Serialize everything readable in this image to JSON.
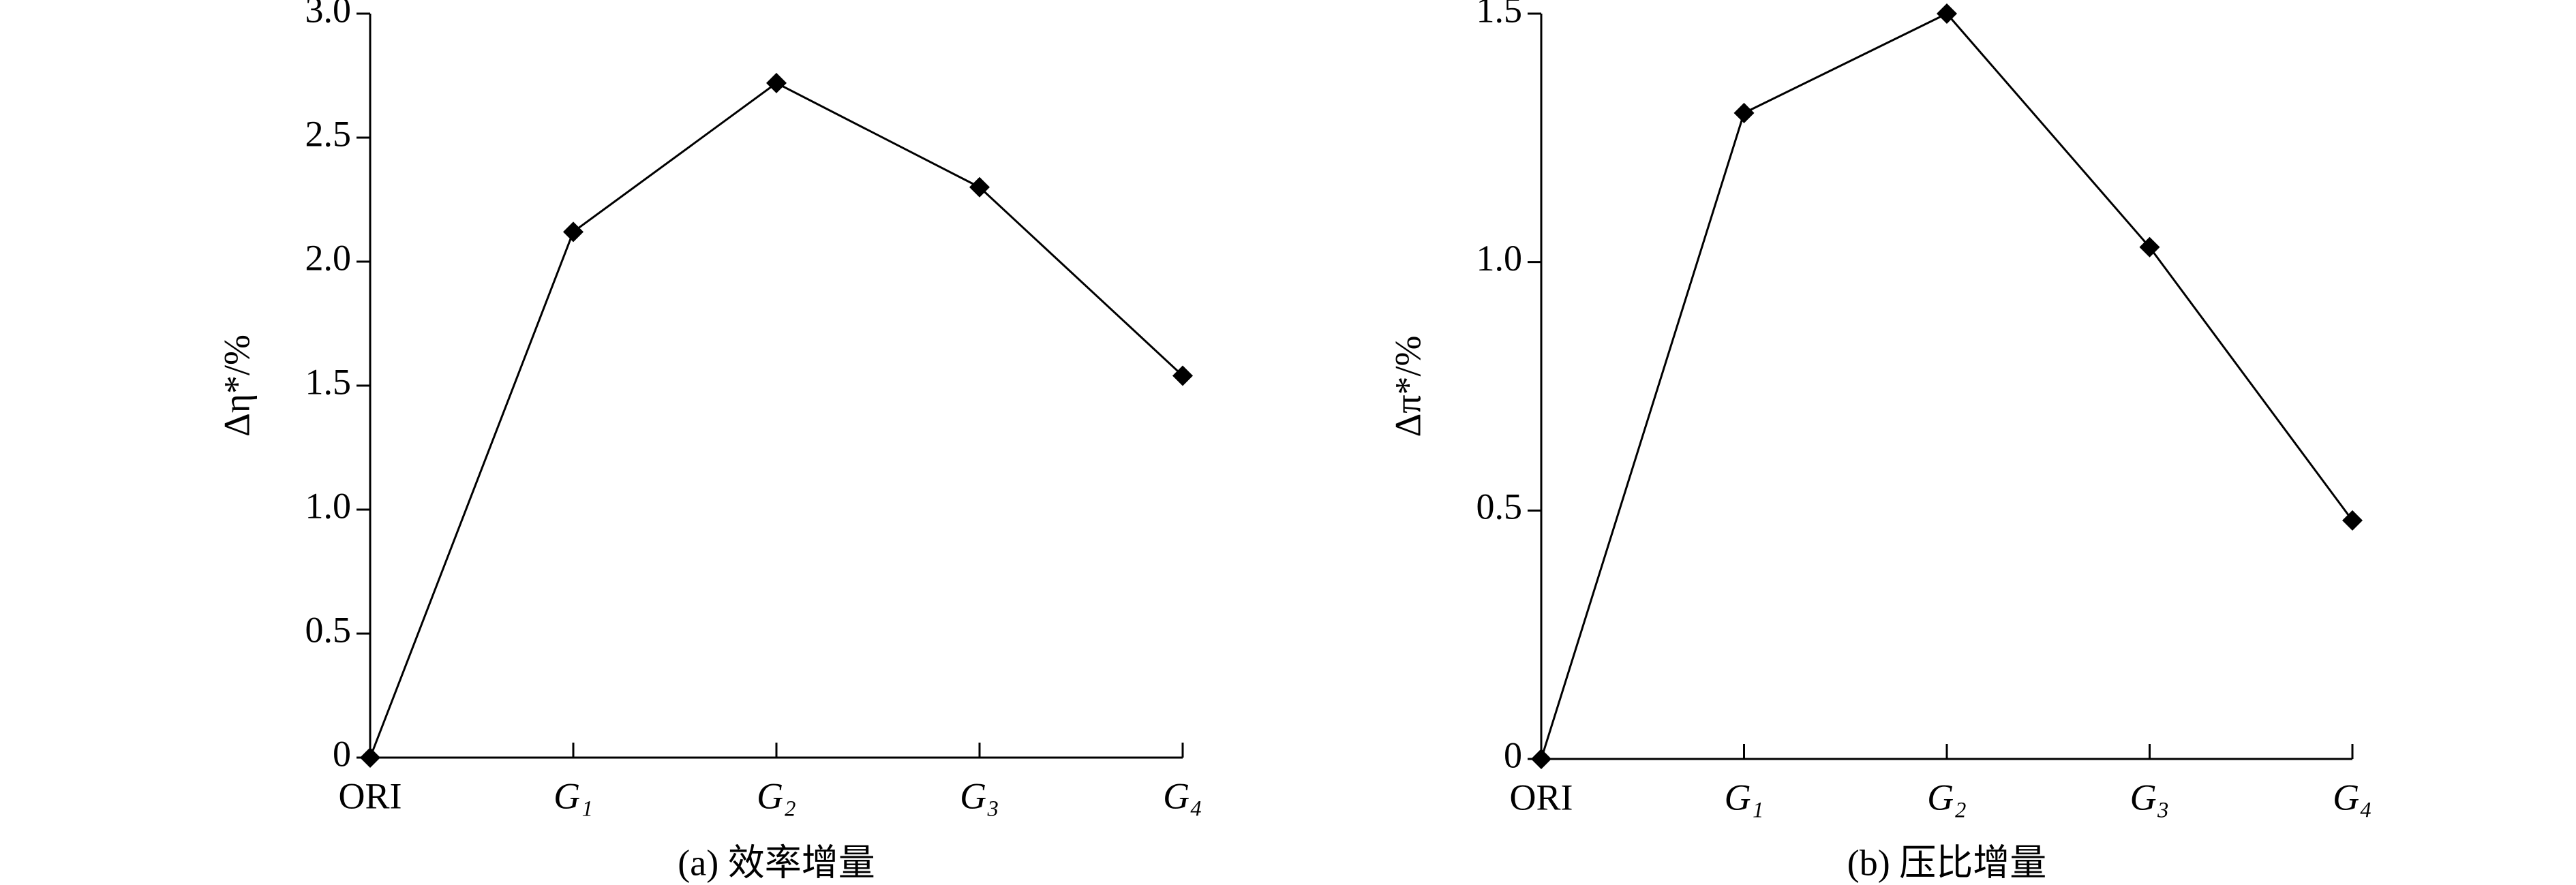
{
  "chart_data": [
    {
      "type": "line",
      "caption": "(a) 效率增量",
      "ylabel": "Δη*/%",
      "categories": [
        "ORI",
        "G₁",
        "G₂",
        "G₃",
        "G₄"
      ],
      "values": [
        0,
        2.12,
        2.72,
        2.3,
        1.54
      ],
      "color": "#000000",
      "ylim": [
        0,
        3
      ],
      "yticks": [
        0,
        0.5,
        {
          "value": 1,
          "label": "1.0"
        },
        1.5,
        {
          "value": 2,
          "label": "2.0"
        },
        2.5,
        {
          "value": 3,
          "label": "3.0"
        }
      ]
    },
    {
      "type": "line",
      "caption": "(b) 压比增量",
      "ylabel": "Δπ*/%",
      "categories": [
        "ORI",
        "G₁",
        "G₂",
        "G₃",
        "G₄"
      ],
      "values": [
        0,
        1.3,
        1.5,
        1.03,
        0.48
      ],
      "color": "#000000",
      "ylim": [
        0,
        1.5
      ],
      "yticks": [
        0,
        0.5,
        {
          "value": 1,
          "label": "1.0"
        },
        1.5
      ]
    }
  ]
}
